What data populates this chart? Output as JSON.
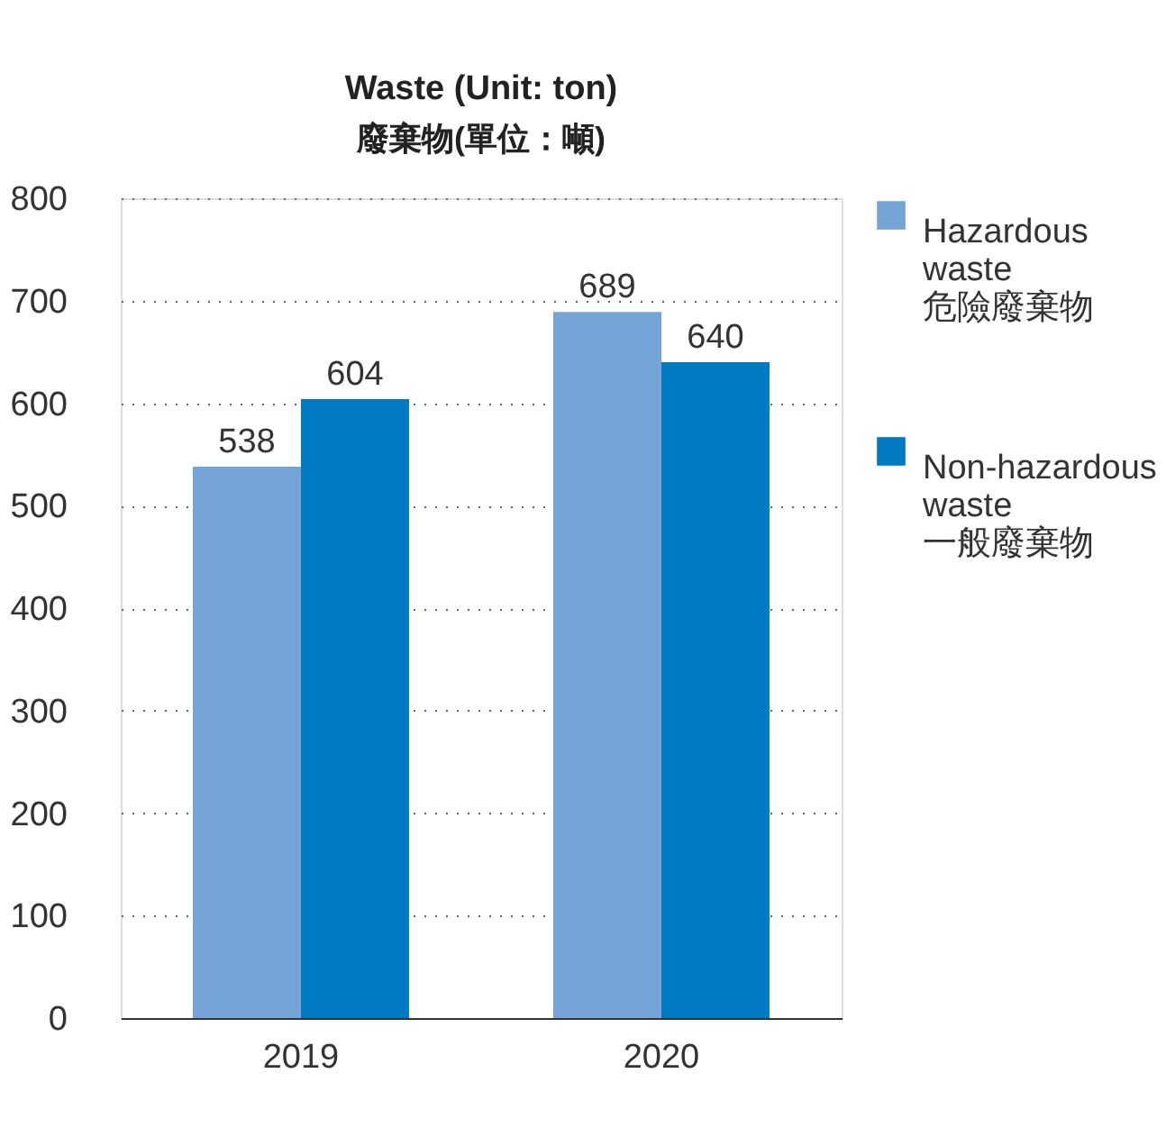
{
  "chart_data": {
    "type": "bar",
    "title": "Waste (Unit: ton)",
    "subtitle": "廢棄物(單位：噸)",
    "categories": [
      "2019",
      "2020"
    ],
    "series": [
      {
        "name": "Hazardous waste 危險廢棄物",
        "color": "#75a5d7",
        "values": [
          538,
          689
        ]
      },
      {
        "name": "Non-hazardous waste 一般廢棄物",
        "color": "#007ac3",
        "values": [
          604,
          640
        ]
      }
    ],
    "ylim": [
      0,
      800
    ],
    "yticks": [
      0,
      100,
      200,
      300,
      400,
      500,
      600,
      700,
      800
    ],
    "grid": "y",
    "legend": "right",
    "data_labels": true
  }
}
